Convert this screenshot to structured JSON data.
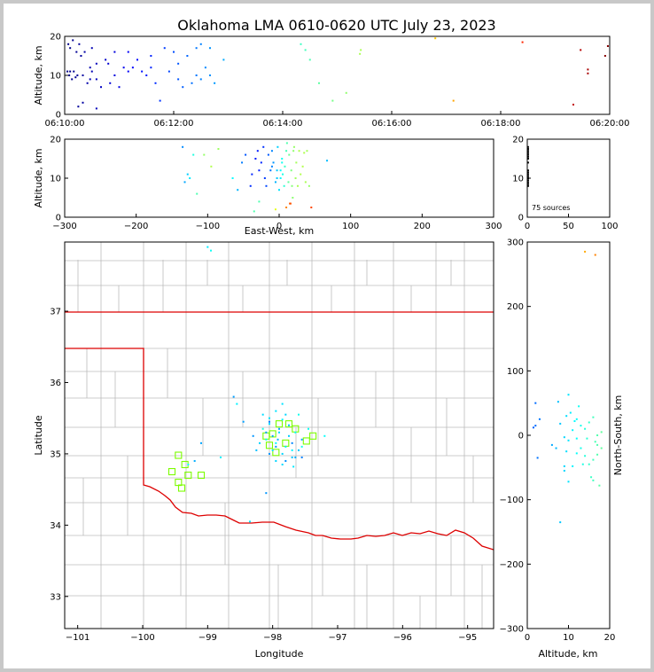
{
  "title": "Oklahoma LMA 0610-0620 UTC July 23, 2023",
  "colors": {
    "state_border": "#dd0000",
    "county_line": "#bbbbbb",
    "station_marker": "#7cfc00",
    "background": "#ffffff"
  },
  "chart_data": [
    {
      "id": "time_height",
      "type": "scatter",
      "ylabel": "Altitude, km",
      "xlim": [
        "06:10:00",
        "06:20:00"
      ],
      "ylim": [
        0,
        20
      ],
      "xticks": [
        "06:10:00",
        "06:12:00",
        "06:14:00",
        "06:16:00",
        "06:18:00",
        "06:20:00"
      ],
      "yticks": [
        "0",
        "10",
        "20"
      ],
      "x_seconds_since": "06:10:00",
      "points": [
        [
          3,
          11
        ],
        [
          6,
          11
        ],
        [
          10,
          11
        ],
        [
          12,
          9.5
        ],
        [
          5,
          10
        ],
        [
          8,
          9
        ],
        [
          14,
          10
        ],
        [
          20,
          10
        ],
        [
          25,
          8
        ],
        [
          28,
          9
        ],
        [
          30,
          11
        ],
        [
          35,
          9
        ],
        [
          40,
          7
        ],
        [
          50,
          8
        ],
        [
          55,
          10
        ],
        [
          60,
          7
        ],
        [
          70,
          11
        ],
        [
          75,
          12
        ],
        [
          85,
          11
        ],
        [
          90,
          10
        ],
        [
          95,
          12
        ],
        [
          100,
          8
        ],
        [
          115,
          11
        ],
        [
          125,
          9
        ],
        [
          130,
          7
        ],
        [
          140,
          8
        ],
        [
          145,
          10
        ],
        [
          150,
          9
        ],
        [
          155,
          12
        ],
        [
          160,
          10
        ],
        [
          165,
          8
        ],
        [
          4,
          18
        ],
        [
          6,
          17
        ],
        [
          9,
          19
        ],
        [
          13,
          16
        ],
        [
          16,
          18
        ],
        [
          18,
          15
        ],
        [
          22,
          16
        ],
        [
          30,
          17
        ],
        [
          35,
          13
        ],
        [
          45,
          14
        ],
        [
          55,
          16
        ],
        [
          70,
          16
        ],
        [
          80,
          14
        ],
        [
          95,
          15
        ],
        [
          110,
          17
        ],
        [
          120,
          16
        ],
        [
          125,
          13
        ],
        [
          135,
          15
        ],
        [
          145,
          17
        ],
        [
          150,
          18
        ],
        [
          160,
          17
        ],
        [
          175,
          14
        ],
        [
          28,
          12
        ],
        [
          48,
          13
        ],
        [
          65,
          12
        ],
        [
          105,
          3.5
        ],
        [
          20,
          3
        ],
        [
          15,
          2
        ],
        [
          35,
          1.5
        ],
        [
          260,
          18
        ],
        [
          265,
          16.5
        ],
        [
          270,
          14
        ],
        [
          280,
          8
        ],
        [
          295,
          3.5
        ],
        [
          310,
          5.5
        ],
        [
          325,
          15.5
        ],
        [
          326,
          16.5
        ],
        [
          408,
          19.5
        ],
        [
          428,
          3.5
        ],
        [
          504,
          18.5
        ],
        [
          560,
          2.5
        ],
        [
          568,
          16.5
        ],
        [
          576,
          11.5
        ],
        [
          576,
          10.5
        ],
        [
          595,
          15
        ],
        [
          598,
          17.5
        ]
      ]
    },
    {
      "id": "xz_view",
      "type": "scatter",
      "xlabel": "East-West, km",
      "ylabel": "Altitude, km",
      "xlim": [
        -300,
        300
      ],
      "ylim": [
        0,
        20
      ],
      "xticks": [
        "−300",
        "−200",
        "−100",
        "0",
        "100",
        "200",
        "300"
      ],
      "yticks": [
        "0",
        "10",
        "20"
      ],
      "points": [
        [
          -135,
          18
        ],
        [
          -120,
          16
        ],
        [
          -128,
          11
        ],
        [
          -132,
          9
        ],
        [
          -125,
          10
        ],
        [
          -115,
          6
        ],
        [
          -105,
          16
        ],
        [
          -95,
          13
        ],
        [
          -85,
          17.5
        ],
        [
          -65,
          10
        ],
        [
          -58,
          7
        ],
        [
          -52,
          14
        ],
        [
          -47,
          16
        ],
        [
          -40,
          8
        ],
        [
          -38,
          11
        ],
        [
          -33,
          15
        ],
        [
          -30,
          17
        ],
        [
          -28,
          12
        ],
        [
          -25,
          14
        ],
        [
          -22,
          18
        ],
        [
          -20,
          10
        ],
        [
          -18,
          8
        ],
        [
          -15,
          16
        ],
        [
          -12,
          12
        ],
        [
          -10,
          17
        ],
        [
          -8,
          14
        ],
        [
          -5,
          9
        ],
        [
          -3,
          12
        ],
        [
          -2,
          18
        ],
        [
          0,
          7
        ],
        [
          2,
          10
        ],
        [
          4,
          15
        ],
        [
          5,
          11
        ],
        [
          7,
          8
        ],
        [
          8,
          13
        ],
        [
          10,
          17
        ],
        [
          11,
          19
        ],
        [
          13,
          9
        ],
        [
          14,
          16
        ],
        [
          15,
          3.5
        ],
        [
          17,
          12
        ],
        [
          19,
          5
        ],
        [
          21,
          18
        ],
        [
          23,
          10
        ],
        [
          24,
          14
        ],
        [
          26,
          8
        ],
        [
          28,
          17
        ],
        [
          30,
          11
        ],
        [
          33,
          13
        ],
        [
          35,
          16.5
        ],
        [
          37,
          9
        ],
        [
          39,
          17
        ],
        [
          42,
          8
        ],
        [
          45,
          2.5
        ],
        [
          67,
          14.5
        ],
        [
          -35,
          1.5
        ],
        [
          -28,
          4
        ],
        [
          -5,
          2
        ],
        [
          10,
          2.5
        ],
        [
          16,
          3.5
        ],
        [
          18,
          8
        ],
        [
          20,
          17
        ],
        [
          -3,
          10
        ],
        [
          2,
          12
        ],
        [
          4,
          14
        ],
        [
          -10,
          13
        ]
      ]
    },
    {
      "id": "altitude_histogram",
      "type": "scatter",
      "xlim": [
        0,
        100
      ],
      "ylim": [
        0,
        20
      ],
      "xticks": [
        "0",
        "50",
        "100"
      ],
      "yticks": [
        "0",
        "10",
        "20"
      ],
      "annotation": "75 sources",
      "points": [
        [
          1,
          8
        ],
        [
          1,
          8.5
        ],
        [
          1,
          9
        ],
        [
          1,
          9.5
        ],
        [
          1,
          10
        ],
        [
          1,
          10.5
        ],
        [
          1,
          11
        ],
        [
          1,
          11.5
        ],
        [
          1,
          12
        ],
        [
          1,
          14
        ],
        [
          1,
          15
        ],
        [
          1,
          15.5
        ],
        [
          1,
          16
        ],
        [
          1,
          16.5
        ],
        [
          1,
          17
        ],
        [
          1,
          17.5
        ],
        [
          1,
          18
        ]
      ]
    },
    {
      "id": "plan_view",
      "type": "scatter",
      "xlabel": "Longitude",
      "ylabel": "Latitude",
      "xlim": [
        -101.2,
        -94.6
      ],
      "ylim": [
        32.55,
        37.97
      ],
      "xticks": [
        "−101",
        "−100",
        "−99",
        "−98",
        "−97",
        "−96",
        "−95"
      ],
      "yticks": [
        "33",
        "34",
        "35",
        "36",
        "37"
      ],
      "points": [
        [
          -98.15,
          35.55
        ],
        [
          -98.05,
          35.5
        ],
        [
          -97.95,
          35.6
        ],
        [
          -97.85,
          35.7
        ],
        [
          -97.6,
          35.55
        ],
        [
          -97.75,
          35.4
        ],
        [
          -97.9,
          35.3
        ],
        [
          -98.0,
          35.25
        ],
        [
          -98.1,
          35.3
        ],
        [
          -98.2,
          35.15
        ],
        [
          -98.0,
          35.05
        ],
        [
          -97.85,
          35.0
        ],
        [
          -97.95,
          34.9
        ],
        [
          -97.85,
          34.85
        ],
        [
          -97.7,
          34.95
        ],
        [
          -97.6,
          35.05
        ],
        [
          -97.55,
          35.2
        ],
        [
          -97.7,
          35.15
        ],
        [
          -97.8,
          35.1
        ],
        [
          -97.75,
          35.25
        ],
        [
          -97.65,
          35.3
        ],
        [
          -97.95,
          35.15
        ],
        [
          -98.05,
          35.0
        ],
        [
          -97.8,
          34.9
        ],
        [
          -98.15,
          35.35
        ],
        [
          -98.3,
          35.25
        ],
        [
          -98.45,
          35.45
        ],
        [
          -98.55,
          35.7
        ],
        [
          -98.6,
          35.8
        ],
        [
          -97.2,
          35.25
        ],
        [
          -98.05,
          35.45
        ],
        [
          -97.9,
          35.35
        ],
        [
          -97.45,
          35.35
        ],
        [
          -97.55,
          35.1
        ],
        [
          -97.65,
          34.95
        ],
        [
          -98.1,
          35.2
        ],
        [
          -99.1,
          35.15
        ],
        [
          -99.2,
          34.9
        ],
        [
          -98.8,
          34.95
        ],
        [
          -99.3,
          34.85
        ],
        [
          -98.35,
          34.05
        ],
        [
          -98.1,
          34.45
        ],
        [
          -98.05,
          35.42
        ],
        [
          -97.85,
          35.48
        ],
        [
          -97.68,
          34.82
        ],
        [
          -97.92,
          35.2
        ],
        [
          -97.8,
          35.55
        ],
        [
          -97.55,
          34.95
        ],
        [
          -97.7,
          35.05
        ],
        [
          -98.25,
          35.05
        ],
        [
          -99.0,
          37.9
        ],
        [
          -98.95,
          37.85
        ],
        [
          -97.95,
          35.1
        ]
      ],
      "stations": [
        [
          -99.55,
          34.75
        ],
        [
          -99.45,
          34.98
        ],
        [
          -99.35,
          34.85
        ],
        [
          -99.3,
          34.7
        ],
        [
          -99.45,
          34.6
        ],
        [
          -99.4,
          34.52
        ],
        [
          -99.1,
          34.7
        ],
        [
          -98.1,
          35.25
        ],
        [
          -98.0,
          35.28
        ],
        [
          -97.9,
          35.42
        ],
        [
          -97.75,
          35.42
        ],
        [
          -97.8,
          35.15
        ],
        [
          -97.65,
          35.35
        ],
        [
          -97.48,
          35.18
        ],
        [
          -97.38,
          35.25
        ],
        [
          -98.05,
          35.12
        ],
        [
          -97.95,
          35.02
        ]
      ]
    },
    {
      "id": "yz_view",
      "type": "scatter",
      "xlabel": "Altitude, km",
      "ylabel": "North-South, km",
      "xlim": [
        0,
        20
      ],
      "ylim": [
        -300,
        300
      ],
      "xticks": [
        "0",
        "10",
        "20"
      ],
      "yticks": [
        "−300",
        "−200",
        "−100",
        "0",
        "100",
        "200",
        "300"
      ],
      "points": [
        [
          2,
          50
        ],
        [
          2,
          15
        ],
        [
          1.5,
          12
        ],
        [
          3,
          25
        ],
        [
          2.5,
          -35
        ],
        [
          6,
          -15
        ],
        [
          7,
          -20
        ],
        [
          7.5,
          52
        ],
        [
          8,
          -135
        ],
        [
          8,
          18
        ],
        [
          9,
          -48
        ],
        [
          9,
          -55
        ],
        [
          9,
          -3
        ],
        [
          9.5,
          -25
        ],
        [
          9.5,
          30
        ],
        [
          10,
          63
        ],
        [
          10,
          -8
        ],
        [
          10,
          -72
        ],
        [
          10.5,
          35
        ],
        [
          11,
          -48
        ],
        [
          11,
          8
        ],
        [
          11.5,
          22
        ],
        [
          12,
          -5
        ],
        [
          12,
          -28
        ],
        [
          12.5,
          45
        ],
        [
          13,
          15
        ],
        [
          13,
          -20
        ],
        [
          13.5,
          -45
        ],
        [
          14,
          -32
        ],
        [
          14,
          10
        ],
        [
          14.5,
          -5
        ],
        [
          15,
          -45
        ],
        [
          15,
          20
        ],
        [
          15.5,
          -65
        ],
        [
          16,
          -38
        ],
        [
          16,
          28
        ],
        [
          16.5,
          -10
        ],
        [
          17,
          -30
        ],
        [
          17,
          0
        ],
        [
          17.5,
          -78
        ],
        [
          18,
          -20
        ],
        [
          18,
          5
        ],
        [
          14,
          285
        ],
        [
          16.5,
          280
        ],
        [
          16,
          -70
        ],
        [
          17,
          -15
        ],
        [
          12,
          25
        ]
      ]
    }
  ]
}
